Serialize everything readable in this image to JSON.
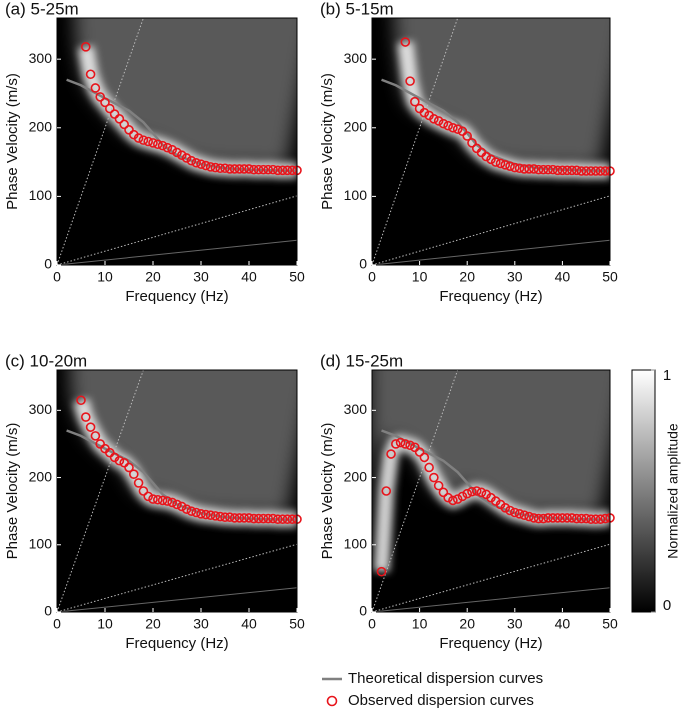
{
  "chart_data": [
    {
      "type": "dispersion",
      "title": "(a) 5-25m",
      "xlabel": "Frequency (Hz)",
      "ylabel": "Phase Velocity (m/s)",
      "xlim": [
        0,
        50
      ],
      "ylim": [
        0,
        360
      ],
      "xticks": [
        0,
        10,
        20,
        30,
        40,
        50
      ],
      "yticks": [
        0,
        100,
        200,
        300
      ],
      "series": [
        {
          "name": "Theoretical dispersion curves",
          "color": "#808080",
          "kind": "line",
          "x": [
            2,
            5,
            10,
            15,
            18,
            20,
            22,
            25,
            30,
            35,
            40,
            45,
            50
          ],
          "values": [
            270,
            262,
            243,
            225,
            208,
            192,
            175,
            160,
            147,
            141,
            139,
            138,
            137
          ]
        },
        {
          "name": "Observed dispersion curves",
          "color": "#e8141b",
          "kind": "scatter",
          "x": [
            6,
            7,
            8,
            9,
            10,
            11,
            12,
            13,
            14,
            15,
            16,
            17,
            18,
            19,
            20,
            21,
            22,
            23,
            24,
            25,
            26,
            27,
            28,
            29,
            30,
            31,
            32,
            33,
            34,
            35,
            36,
            37,
            38,
            39,
            40,
            41,
            42,
            43,
            44,
            45,
            46,
            47,
            48,
            49,
            50
          ],
          "values": [
            318,
            278,
            258,
            245,
            237,
            228,
            220,
            213,
            205,
            197,
            190,
            185,
            182,
            180,
            178,
            176,
            174,
            171,
            168,
            164,
            160,
            156,
            152,
            149,
            147,
            145,
            143,
            142,
            141,
            141,
            140,
            140,
            140,
            140,
            140,
            139,
            139,
            139,
            139,
            139,
            138,
            138,
            138,
            138,
            138
          ]
        }
      ]
    },
    {
      "type": "dispersion",
      "title": "(b) 5-15m",
      "xlabel": "Frequency (Hz)",
      "ylabel": "Phase Velocity (m/s)",
      "xlim": [
        0,
        50
      ],
      "ylim": [
        0,
        360
      ],
      "xticks": [
        0,
        10,
        20,
        30,
        40,
        50
      ],
      "yticks": [
        0,
        100,
        200,
        300
      ],
      "series": [
        {
          "color": "#808080",
          "kind": "line",
          "x": [
            2,
            5,
            10,
            15,
            18,
            20,
            22,
            25,
            30,
            35,
            40,
            45,
            50
          ],
          "values": [
            270,
            262,
            243,
            225,
            208,
            192,
            175,
            160,
            147,
            141,
            139,
            138,
            137
          ]
        },
        {
          "color": "#e8141b",
          "kind": "scatter",
          "x": [
            7,
            8,
            9,
            10,
            11,
            12,
            13,
            14,
            15,
            16,
            17,
            18,
            19,
            20,
            21,
            22,
            23,
            24,
            25,
            26,
            27,
            28,
            29,
            30,
            31,
            32,
            33,
            34,
            35,
            36,
            37,
            38,
            39,
            40,
            41,
            42,
            43,
            44,
            45,
            46,
            47,
            48,
            49,
            50
          ],
          "values": [
            325,
            268,
            238,
            228,
            222,
            218,
            213,
            210,
            206,
            203,
            200,
            198,
            195,
            188,
            178,
            170,
            164,
            158,
            154,
            150,
            148,
            146,
            144,
            142,
            141,
            140,
            140,
            140,
            139,
            139,
            139,
            139,
            138,
            138,
            138,
            138,
            138,
            137,
            137,
            137,
            137,
            137,
            137,
            137
          ]
        }
      ]
    },
    {
      "type": "dispersion",
      "title": "(c) 10-20m",
      "xlabel": "Frequency (Hz)",
      "ylabel": "Phase Velocity (m/s)",
      "xlim": [
        0,
        50
      ],
      "ylim": [
        0,
        360
      ],
      "xticks": [
        0,
        10,
        20,
        30,
        40,
        50
      ],
      "yticks": [
        0,
        100,
        200,
        300
      ],
      "series": [
        {
          "color": "#808080",
          "kind": "line",
          "x": [
            2,
            5,
            10,
            15,
            18,
            20,
            22,
            25,
            30,
            35,
            40,
            45,
            50
          ],
          "values": [
            270,
            262,
            243,
            225,
            208,
            192,
            175,
            160,
            147,
            141,
            139,
            138,
            137
          ]
        },
        {
          "color": "#e8141b",
          "kind": "scatter",
          "x": [
            5,
            6,
            7,
            8,
            9,
            10,
            11,
            12,
            13,
            14,
            15,
            16,
            17,
            18,
            19,
            20,
            21,
            22,
            23,
            24,
            25,
            26,
            27,
            28,
            29,
            30,
            31,
            32,
            33,
            34,
            35,
            36,
            37,
            38,
            39,
            40,
            41,
            42,
            43,
            44,
            45,
            46,
            47,
            48,
            49,
            50
          ],
          "values": [
            315,
            290,
            275,
            262,
            250,
            243,
            237,
            230,
            225,
            222,
            215,
            205,
            192,
            180,
            172,
            168,
            167,
            166,
            165,
            163,
            160,
            157,
            153,
            150,
            148,
            146,
            145,
            144,
            143,
            142,
            141,
            141,
            140,
            140,
            140,
            140,
            139,
            139,
            139,
            139,
            139,
            138,
            138,
            138,
            138,
            138
          ]
        }
      ]
    },
    {
      "type": "dispersion",
      "title": "(d) 15-25m",
      "xlabel": "Frequency (Hz)",
      "ylabel": "Phase Velocity (m/s)",
      "xlim": [
        0,
        50
      ],
      "ylim": [
        0,
        360
      ],
      "xticks": [
        0,
        10,
        20,
        30,
        40,
        50
      ],
      "yticks": [
        0,
        100,
        200,
        300
      ],
      "series": [
        {
          "color": "#808080",
          "kind": "line",
          "x": [
            2,
            5,
            10,
            15,
            18,
            20,
            22,
            25,
            30,
            35,
            40,
            45,
            50
          ],
          "values": [
            270,
            262,
            243,
            225,
            208,
            192,
            175,
            160,
            147,
            141,
            139,
            138,
            137
          ]
        },
        {
          "color": "#e8141b",
          "kind": "scatter",
          "x": [
            2,
            3,
            4,
            5,
            6,
            7,
            8,
            9,
            10,
            11,
            12,
            13,
            14,
            15,
            16,
            17,
            18,
            19,
            20,
            21,
            22,
            23,
            24,
            25,
            26,
            27,
            28,
            29,
            30,
            31,
            32,
            33,
            34,
            35,
            36,
            37,
            38,
            39,
            40,
            41,
            42,
            43,
            44,
            45,
            46,
            47,
            48,
            49,
            50
          ],
          "values": [
            60,
            180,
            235,
            250,
            252,
            250,
            248,
            245,
            238,
            230,
            215,
            200,
            188,
            178,
            170,
            166,
            168,
            172,
            176,
            179,
            180,
            178,
            175,
            170,
            165,
            160,
            155,
            151,
            148,
            146,
            144,
            142,
            140,
            139,
            139,
            140,
            140,
            140,
            140,
            140,
            140,
            139,
            139,
            139,
            138,
            138,
            138,
            139,
            140
          ]
        }
      ]
    }
  ],
  "colorbar": {
    "label": "Normalized amplitude",
    "lim": [
      0,
      1
    ],
    "ticks": [
      0,
      1
    ]
  }
}
